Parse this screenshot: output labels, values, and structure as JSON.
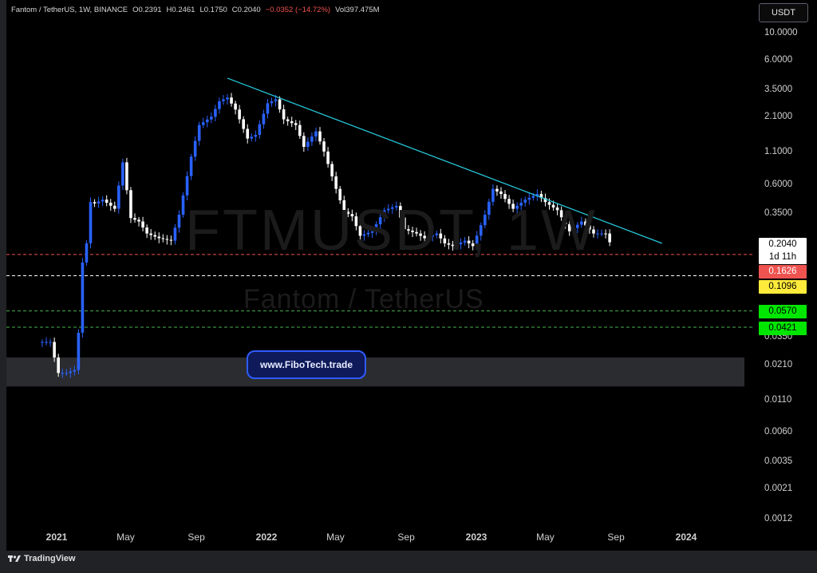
{
  "header": {
    "symbol": "Fantom / TetherUS, 1W, BINANCE",
    "open": "O0.2391",
    "high": "H0.2461",
    "low": "L0.1750",
    "close": "C0.2040",
    "change": "−0.0352 (−14.72%)",
    "volume": "Vol397.475M"
  },
  "currency_button": "USDT",
  "watermark": {
    "symbol": "FTMUSDT, 1W",
    "name": "Fantom / TetherUS"
  },
  "badge": "www.FiboTech.trade",
  "footer": {
    "brand": "TradingView",
    "icon": "tradingview-logo-icon"
  },
  "colors": {
    "background": "#000000",
    "bull": "#2962ff",
    "bear": "#ffffff",
    "trendline": "#26c6da",
    "red_level": "#ef5350",
    "green_level": "#4caf50",
    "support_zone": "#3a3b3f"
  },
  "chart_data": {
    "type": "candlestick",
    "title": "Fantom / TetherUS, 1W, BINANCE",
    "y_scale": "log",
    "ylim": [
      0.0012,
      10.0
    ],
    "y_ticks": [
      "10.0000",
      "6.0000",
      "3.5000",
      "2.1000",
      "1.1000",
      "0.6000",
      "0.3500",
      "0.0350",
      "0.0210",
      "0.0110",
      "0.0060",
      "0.0035",
      "0.0021",
      "0.0012"
    ],
    "x_ticks": [
      {
        "label": "2021",
        "bold": true,
        "x": "2021-01-01"
      },
      {
        "label": "May",
        "bold": false,
        "x": "2021-05-01"
      },
      {
        "label": "Sep",
        "bold": false,
        "x": "2021-09-01"
      },
      {
        "label": "2022",
        "bold": true,
        "x": "2022-01-01"
      },
      {
        "label": "May",
        "bold": false,
        "x": "2022-05-01"
      },
      {
        "label": "Sep",
        "bold": false,
        "x": "2022-09-01"
      },
      {
        "label": "2023",
        "bold": true,
        "x": "2023-01-01"
      },
      {
        "label": "May",
        "bold": false,
        "x": "2023-05-01"
      },
      {
        "label": "Sep",
        "bold": false,
        "x": "2023-09-01"
      },
      {
        "label": "2024",
        "bold": true,
        "x": "2024-01-01"
      }
    ],
    "price_tags": [
      {
        "label": "0.2040",
        "value": 0.204,
        "bg": "#ffffff",
        "fg": "#000000"
      },
      {
        "label": "1d 11h",
        "bg": "#ffffff",
        "fg": "#000000"
      },
      {
        "label": "0.1626",
        "value": 0.1626,
        "bg": "#ef5350",
        "fg": "#ffffff"
      },
      {
        "label": "0.1096",
        "value": 0.1096,
        "bg": "#ffeb3b",
        "fg": "#000000"
      },
      {
        "label": "0.0570",
        "value": 0.057,
        "bg": "#00e600",
        "fg": "#000000"
      },
      {
        "label": "0.0421",
        "value": 0.0421,
        "bg": "#00e600",
        "fg": "#000000"
      }
    ],
    "horizontal_levels": [
      {
        "value": 0.1626,
        "color": "#ef5350"
      },
      {
        "value": 0.1096,
        "color": "#ffffff"
      },
      {
        "value": 0.057,
        "color": "#4caf50"
      },
      {
        "value": 0.0421,
        "color": "#4caf50"
      }
    ],
    "support_zone": {
      "from": 0.014,
      "to": 0.024
    },
    "trendline": {
      "from": {
        "x": "2021-10-25",
        "y": 4.3
      },
      "to": {
        "x": "2023-11-20",
        "y": 0.2
      }
    },
    "anchor_points": [
      {
        "x": "2020-12-21",
        "y": 0.032
      },
      {
        "x": "2021-01-04",
        "y": 0.018
      },
      {
        "x": "2021-01-18",
        "y": 0.018
      },
      {
        "x": "2021-02-01",
        "y": 0.019
      },
      {
        "x": "2021-02-08",
        "y": 0.038
      },
      {
        "x": "2021-02-15",
        "y": 0.14
      },
      {
        "x": "2021-02-22",
        "y": 0.2
      },
      {
        "x": "2021-03-01",
        "y": 0.43
      },
      {
        "x": "2021-03-08",
        "y": 0.42
      },
      {
        "x": "2021-03-22",
        "y": 0.45
      },
      {
        "x": "2021-04-12",
        "y": 0.38
      },
      {
        "x": "2021-04-26",
        "y": 0.9
      },
      {
        "x": "2021-05-10",
        "y": 0.32
      },
      {
        "x": "2021-05-24",
        "y": 0.3
      },
      {
        "x": "2021-06-07",
        "y": 0.24
      },
      {
        "x": "2021-06-28",
        "y": 0.22
      },
      {
        "x": "2021-07-19",
        "y": 0.21
      },
      {
        "x": "2021-08-02",
        "y": 0.34
      },
      {
        "x": "2021-08-23",
        "y": 1.0
      },
      {
        "x": "2021-09-06",
        "y": 1.8
      },
      {
        "x": "2021-09-27",
        "y": 2.1
      },
      {
        "x": "2021-10-11",
        "y": 2.8
      },
      {
        "x": "2021-10-25",
        "y": 3.0
      },
      {
        "x": "2021-11-08",
        "y": 2.4
      },
      {
        "x": "2021-11-29",
        "y": 1.4
      },
      {
        "x": "2021-12-13",
        "y": 1.5
      },
      {
        "x": "2022-01-03",
        "y": 2.7
      },
      {
        "x": "2022-01-17",
        "y": 2.9
      },
      {
        "x": "2022-01-31",
        "y": 2.0
      },
      {
        "x": "2022-02-21",
        "y": 1.8
      },
      {
        "x": "2022-03-07",
        "y": 1.2
      },
      {
        "x": "2022-03-28",
        "y": 1.6
      },
      {
        "x": "2022-04-11",
        "y": 1.1
      },
      {
        "x": "2022-05-02",
        "y": 0.55
      },
      {
        "x": "2022-05-16",
        "y": 0.36
      },
      {
        "x": "2022-05-30",
        "y": 0.33
      },
      {
        "x": "2022-06-13",
        "y": 0.23
      },
      {
        "x": "2022-07-04",
        "y": 0.25
      },
      {
        "x": "2022-07-25",
        "y": 0.37
      },
      {
        "x": "2022-08-15",
        "y": 0.4
      },
      {
        "x": "2022-08-29",
        "y": 0.26
      },
      {
        "x": "2022-09-19",
        "y": 0.24
      },
      {
        "x": "2022-10-03",
        "y": 0.22
      },
      {
        "x": "2022-10-24",
        "y": 0.24
      },
      {
        "x": "2022-11-07",
        "y": 0.2
      },
      {
        "x": "2022-11-21",
        "y": 0.19
      },
      {
        "x": "2022-12-12",
        "y": 0.21
      },
      {
        "x": "2022-12-26",
        "y": 0.19
      },
      {
        "x": "2023-01-16",
        "y": 0.34
      },
      {
        "x": "2023-01-30",
        "y": 0.55
      },
      {
        "x": "2023-02-13",
        "y": 0.5
      },
      {
        "x": "2023-03-06",
        "y": 0.38
      },
      {
        "x": "2023-03-27",
        "y": 0.45
      },
      {
        "x": "2023-04-17",
        "y": 0.5
      },
      {
        "x": "2023-05-01",
        "y": 0.43
      },
      {
        "x": "2023-05-22",
        "y": 0.37
      },
      {
        "x": "2023-06-12",
        "y": 0.25
      },
      {
        "x": "2023-07-03",
        "y": 0.3
      },
      {
        "x": "2023-07-24",
        "y": 0.24
      },
      {
        "x": "2023-08-14",
        "y": 0.24
      },
      {
        "x": "2023-08-21",
        "y": 0.204
      }
    ]
  }
}
